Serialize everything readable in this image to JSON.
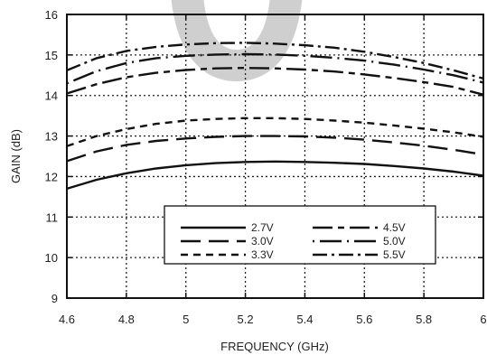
{
  "chart_data": {
    "type": "line",
    "title": "",
    "xlabel": "FREQUENCY (GHz)",
    "ylabel": "GAIN (dB)",
    "xlim": [
      4.6,
      6.0
    ],
    "ylim": [
      9,
      16
    ],
    "x_ticks": [
      "4.6",
      "4.8",
      "5",
      "5.2",
      "5.4",
      "5.6",
      "5.8",
      "6"
    ],
    "y_ticks": [
      "9",
      "10",
      "11",
      "12",
      "13",
      "14",
      "15",
      "16"
    ],
    "grid": true,
    "legend_position": "bottom-center",
    "series": [
      {
        "name": "2.7V",
        "dash": "solid",
        "x": [
          4.6,
          4.7,
          4.8,
          4.9,
          5.0,
          5.1,
          5.2,
          5.3,
          5.4,
          5.5,
          5.6,
          5.7,
          5.8,
          5.9,
          6.0
        ],
        "values": [
          11.7,
          11.92,
          12.08,
          12.2,
          12.28,
          12.33,
          12.36,
          12.37,
          12.36,
          12.34,
          12.31,
          12.26,
          12.2,
          12.12,
          12.02
        ]
      },
      {
        "name": "3.0V",
        "dash": "long-dash",
        "x": [
          4.6,
          4.7,
          4.8,
          4.9,
          5.0,
          5.1,
          5.2,
          5.3,
          5.4,
          5.5,
          5.6,
          5.7,
          5.8,
          5.9,
          6.0
        ],
        "values": [
          12.38,
          12.62,
          12.78,
          12.88,
          12.94,
          12.98,
          13.0,
          13.0,
          12.99,
          12.96,
          12.91,
          12.84,
          12.76,
          12.66,
          12.54
        ]
      },
      {
        "name": "3.3V",
        "dash": "short-dash",
        "x": [
          4.6,
          4.7,
          4.8,
          4.9,
          5.0,
          5.1,
          5.2,
          5.3,
          5.4,
          5.5,
          5.6,
          5.7,
          5.8,
          5.9,
          6.0
        ],
        "values": [
          12.75,
          13.0,
          13.17,
          13.3,
          13.38,
          13.42,
          13.44,
          13.44,
          13.42,
          13.38,
          13.33,
          13.26,
          13.18,
          13.09,
          12.98
        ]
      },
      {
        "name": "4.5V",
        "dash": "long-short",
        "x": [
          4.6,
          4.7,
          4.8,
          4.9,
          5.0,
          5.1,
          5.2,
          5.3,
          5.4,
          5.5,
          5.6,
          5.7,
          5.8,
          5.9,
          6.0
        ],
        "values": [
          14.05,
          14.28,
          14.45,
          14.56,
          14.63,
          14.67,
          14.68,
          14.67,
          14.64,
          14.59,
          14.52,
          14.43,
          14.33,
          14.21,
          14.02
        ]
      },
      {
        "name": "5.0V",
        "dash": "dot-long",
        "x": [
          4.6,
          4.7,
          4.8,
          4.9,
          5.0,
          5.1,
          5.2,
          5.3,
          5.4,
          5.5,
          5.6,
          5.7,
          5.8,
          5.9,
          6.0
        ],
        "values": [
          14.3,
          14.6,
          14.8,
          14.92,
          14.98,
          15.01,
          15.02,
          15.01,
          14.98,
          14.93,
          14.86,
          14.76,
          14.64,
          14.5,
          14.32
        ]
      },
      {
        "name": "5.5V",
        "dash": "dash-dot",
        "x": [
          4.6,
          4.7,
          4.8,
          4.9,
          5.0,
          5.1,
          5.2,
          5.3,
          5.4,
          5.5,
          5.6,
          5.7,
          5.8,
          5.9,
          6.0
        ],
        "values": [
          14.62,
          14.92,
          15.1,
          15.2,
          15.26,
          15.29,
          15.3,
          15.28,
          15.24,
          15.18,
          15.08,
          14.95,
          14.8,
          14.62,
          14.42
        ]
      }
    ]
  },
  "colors": {
    "line": "#111111",
    "grid": "#222222",
    "watermark": "#c9c9c9"
  }
}
